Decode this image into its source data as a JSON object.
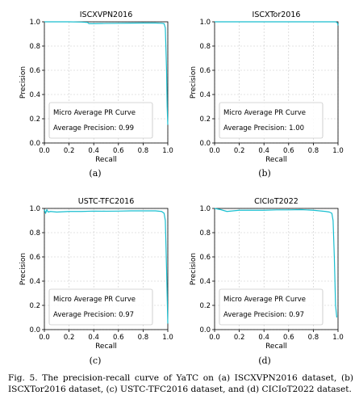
{
  "chart_data": [
    {
      "type": "line",
      "title": "ISCXVPN2016",
      "xlabel": "Recall",
      "ylabel": "Precision",
      "xlim": [
        0.0,
        1.0
      ],
      "ylim": [
        0.0,
        1.0
      ],
      "xticks": [
        "0.0",
        "0.2",
        "0.4",
        "0.6",
        "0.8",
        "1.0"
      ],
      "yticks": [
        "0.0",
        "0.2",
        "0.4",
        "0.6",
        "0.8",
        "1.0"
      ],
      "grid": true,
      "legend": {
        "placement": "lower-left",
        "line1": "Micro Average PR Curve",
        "line2": "Average Precision: 0.99"
      },
      "series": [
        {
          "color": "#17becf",
          "x": [
            0.0,
            0.2,
            0.3,
            0.35,
            0.36,
            0.4,
            0.5,
            0.6,
            0.7,
            0.8,
            0.85,
            0.9,
            0.95,
            0.97,
            0.98,
            0.99,
            0.995,
            1.0
          ],
          "y": [
            1.0,
            1.0,
            0.998,
            0.995,
            0.985,
            0.985,
            0.987,
            0.988,
            0.989,
            0.99,
            0.99,
            0.99,
            0.988,
            0.985,
            0.95,
            0.6,
            0.3,
            0.15
          ]
        }
      ],
      "panel_label": "(a)"
    },
    {
      "type": "line",
      "title": "ISCXTor2016",
      "xlabel": "Recall",
      "ylabel": "Precision",
      "xlim": [
        0.0,
        1.0
      ],
      "ylim": [
        0.0,
        1.0
      ],
      "xticks": [
        "0.0",
        "0.2",
        "0.4",
        "0.6",
        "0.8",
        "1.0"
      ],
      "yticks": [
        "0.0",
        "0.2",
        "0.4",
        "0.6",
        "0.8",
        "1.0"
      ],
      "grid": true,
      "legend": {
        "placement": "lower-left",
        "line1": "Micro Average PR Curve",
        "line2": "Average Precision: 1.00"
      },
      "series": [
        {
          "color": "#17becf",
          "x": [
            0.0,
            0.5,
            0.98,
            0.99,
            0.995,
            1.0
          ],
          "y": [
            1.0,
            1.0,
            1.0,
            0.995,
            0.99,
            0.97
          ]
        }
      ],
      "panel_label": "(b)"
    },
    {
      "type": "line",
      "title": "USTC-TFC2016",
      "xlabel": "Recall",
      "ylabel": "Precision",
      "xlim": [
        0.0,
        1.0
      ],
      "ylim": [
        0.0,
        1.0
      ],
      "xticks": [
        "0.0",
        "0.2",
        "0.4",
        "0.6",
        "0.8",
        "1.0"
      ],
      "yticks": [
        "0.0",
        "0.2",
        "0.4",
        "0.6",
        "0.8",
        "1.0"
      ],
      "grid": true,
      "legend": {
        "placement": "lower-left",
        "line1": "Micro Average PR Curve",
        "line2": "Average Precision: 0.97"
      },
      "series": [
        {
          "color": "#17becf",
          "x": [
            0.0,
            0.01,
            0.02,
            0.03,
            0.05,
            0.1,
            0.2,
            0.3,
            0.4,
            0.5,
            0.6,
            0.7,
            0.8,
            0.9,
            0.95,
            0.97,
            0.98,
            0.99,
            1.0
          ],
          "y": [
            0.99,
            0.96,
            0.99,
            0.97,
            0.975,
            0.97,
            0.975,
            0.975,
            0.978,
            0.977,
            0.978,
            0.98,
            0.98,
            0.98,
            0.975,
            0.96,
            0.9,
            0.5,
            0.05
          ]
        }
      ],
      "panel_label": "(c)"
    },
    {
      "type": "line",
      "title": "CICIoT2022",
      "xlabel": "Recall",
      "ylabel": "Precision",
      "xlim": [
        0.0,
        1.0
      ],
      "ylim": [
        0.0,
        1.0
      ],
      "xticks": [
        "0.0",
        "0.2",
        "0.4",
        "0.6",
        "0.8",
        "1.0"
      ],
      "yticks": [
        "0.0",
        "0.2",
        "0.4",
        "0.6",
        "0.8",
        "1.0"
      ],
      "grid": true,
      "legend": {
        "placement": "lower-left",
        "line1": "Micro Average PR Curve",
        "line2": "Average Precision: 0.97"
      },
      "series": [
        {
          "color": "#17becf",
          "x": [
            0.0,
            0.05,
            0.1,
            0.15,
            0.2,
            0.3,
            0.4,
            0.5,
            0.6,
            0.7,
            0.8,
            0.9,
            0.93,
            0.95,
            0.96,
            0.97,
            0.98,
            0.99
          ],
          "y": [
            1.0,
            0.99,
            0.975,
            0.98,
            0.985,
            0.985,
            0.985,
            0.988,
            0.988,
            0.99,
            0.985,
            0.975,
            0.97,
            0.96,
            0.9,
            0.6,
            0.2,
            0.1
          ]
        }
      ],
      "panel_label": "(d)"
    }
  ],
  "caption": "Fig. 5.   The precision-recall curve of YaTC on (a) ISCXVPN2016 dataset, (b) ISCXTor2016 dataset, (c) USTC-TFC2016 dataset, and (d) CICIoT2022 dataset."
}
